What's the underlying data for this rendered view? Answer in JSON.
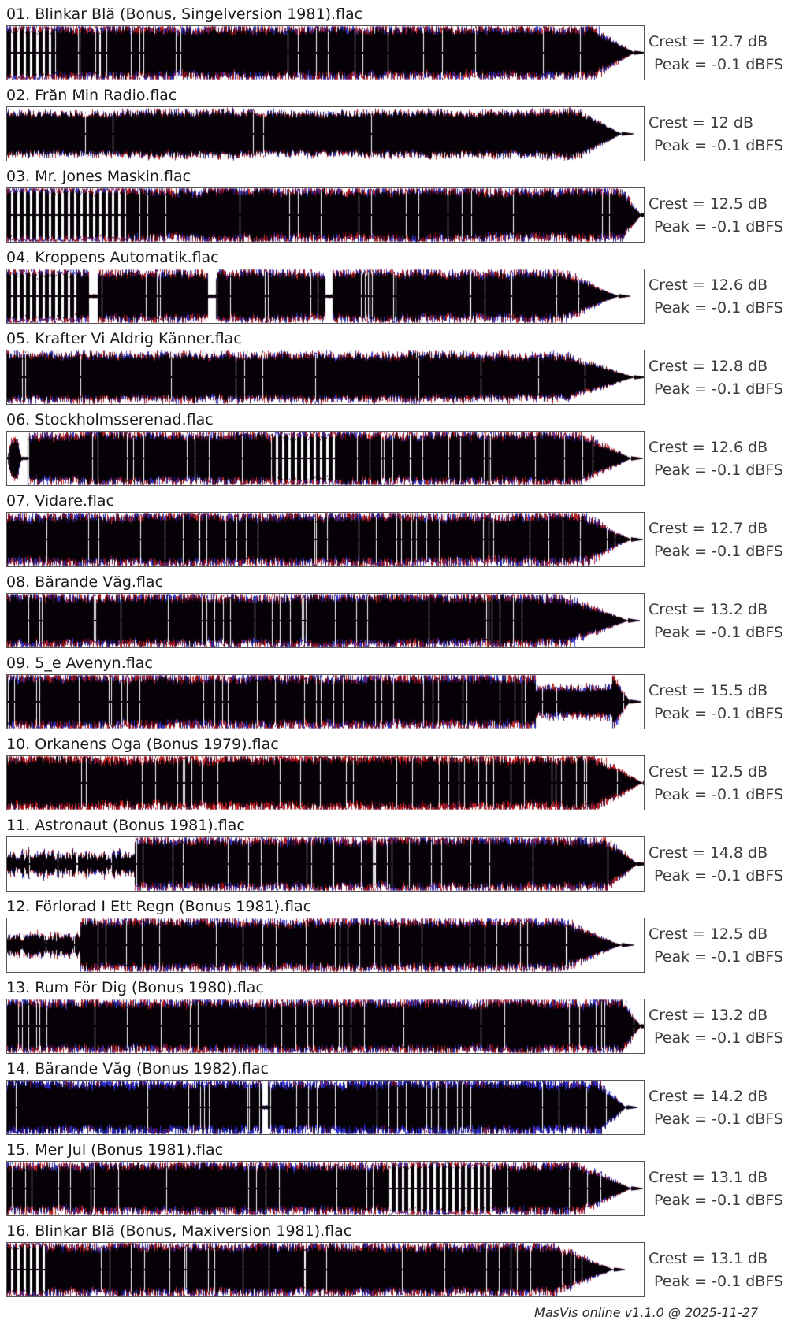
{
  "app": {
    "footer_text": "MasVis online v1.1.0 @ 2025-11-27"
  },
  "colors": {
    "background": "#ffffff",
    "title_text": "#1a1a1a",
    "stats_text": "#3d3d3d",
    "box_border": "#565656",
    "wave_body": "#050107",
    "wave_red": "#b00000",
    "wave_blue": "#2222b0"
  },
  "tracks": [
    {
      "title": "01. Blinkar Blă (Bonus, Singelversion 1981).flac",
      "crest_text": "Crest = 12.7 dB",
      "peak_text": "Peak = -0.1 dBFS",
      "crest_db": 12.7,
      "peak_dbfs": -0.1,
      "waveform": {
        "seed": 11,
        "bias": "neutral",
        "fur": 1.0,
        "body": 1.0,
        "segments": [
          {
            "from": 0,
            "to": 0.075,
            "type": "bars"
          }
        ],
        "tail": {
          "start": 0.92,
          "point": 0.985
        }
      }
    },
    {
      "title": "02. Frăn Min Radio.flac",
      "crest_text": "Crest = 12 dB",
      "peak_text": "Peak = -0.1 dBFS",
      "crest_db": 12,
      "peak_dbfs": -0.1,
      "waveform": {
        "seed": 22,
        "bias": "neutral",
        "fur": 0.25,
        "body": 0.93,
        "segments": [],
        "tail": {
          "start": 0.9,
          "point": 0.965
        }
      }
    },
    {
      "title": "03. Mr. Jones Maskin.flac",
      "crest_text": "Crest = 12.5 dB",
      "peak_text": "Peak = -0.1 dBFS",
      "crest_db": 12.5,
      "peak_dbfs": -0.1,
      "waveform": {
        "seed": 33,
        "bias": "neutral",
        "fur": 1.0,
        "body": 1.0,
        "segments": [
          {
            "from": 0,
            "to": 0.185,
            "type": "bars"
          }
        ],
        "tail": {
          "start": 0.965,
          "point": 0.995
        }
      }
    },
    {
      "title": "04. Kroppens Automatik.flac",
      "crest_text": "Crest = 12.6 dB",
      "peak_text": "Peak = -0.1 dBFS",
      "crest_db": 12.6,
      "peak_dbfs": -0.1,
      "waveform": {
        "seed": 44,
        "bias": "neutral",
        "fur": 0.8,
        "body": 0.97,
        "segments": [
          {
            "from": 0,
            "to": 0.115,
            "type": "bars"
          },
          {
            "from": 0.128,
            "to": 0.142,
            "type": "gap"
          },
          {
            "from": 0.315,
            "to": 0.327,
            "type": "gap"
          },
          {
            "from": 0.5,
            "to": 0.51,
            "type": "gap"
          }
        ],
        "tail": {
          "start": 0.87,
          "point": 0.96
        }
      }
    },
    {
      "title": "05. Krafter Vi Aldrig Känner.flac",
      "crest_text": "Crest = 12.8 dB",
      "peak_text": "Peak = -0.1 dBFS",
      "crest_db": 12.8,
      "peak_dbfs": -0.1,
      "waveform": {
        "seed": 55,
        "bias": "neutral",
        "fur": 0.5,
        "body": 0.96,
        "segments": [],
        "tail": {
          "start": 0.87,
          "point": 0.985
        }
      }
    },
    {
      "title": "06. Stockholmsserenad.flac",
      "crest_text": "Crest = 12.6 dB",
      "peak_text": "Peak = -0.1 dBFS",
      "crest_db": 12.6,
      "peak_dbfs": -0.1,
      "waveform": {
        "seed": 66,
        "bias": "neutral",
        "fur": 0.9,
        "body": 1.0,
        "segments": [
          {
            "from": 0,
            "to": 0.022,
            "type": "blob",
            "amp": 0.9
          },
          {
            "from": 0.022,
            "to": 0.032,
            "type": "gap"
          },
          {
            "from": 0.42,
            "to": 0.52,
            "type": "bars"
          }
        ],
        "tail": {
          "start": 0.9,
          "point": 0.98
        }
      }
    },
    {
      "title": "07. Vidare.flac",
      "crest_text": "Crest = 12.7 dB",
      "peak_text": "Peak = -0.1 dBFS",
      "crest_db": 12.7,
      "peak_dbfs": -0.1,
      "waveform": {
        "seed": 77,
        "bias": "neutral",
        "fur": 1.2,
        "body": 0.97,
        "segments": [],
        "tail": {
          "start": 0.9,
          "point": 0.98
        }
      }
    },
    {
      "title": "08. Bärande Văg.flac",
      "crest_text": "Crest = 13.2 dB",
      "peak_text": "Peak = -0.1 dBFS",
      "crest_db": 13.2,
      "peak_dbfs": -0.1,
      "waveform": {
        "seed": 88,
        "bias": "neutral",
        "fur": 1.0,
        "body": 1.0,
        "segments": [],
        "tail": {
          "start": 0.87,
          "point": 0.975
        }
      }
    },
    {
      "title": "09. 5_e Avenyn.flac",
      "crest_text": "Crest = 15.5 dB",
      "peak_text": "Peak = -0.1 dBFS",
      "crest_db": 15.5,
      "peak_dbfs": -0.1,
      "waveform": {
        "seed": 99,
        "bias": "neutral",
        "fur": 1.3,
        "body": 1.0,
        "segments": [
          {
            "from": 0.83,
            "to": 0.95,
            "type": "quiet",
            "amp": 0.55
          }
        ],
        "tail": {
          "start": 0.95,
          "point": 0.978
        }
      }
    },
    {
      "title": "10. Orkanens Oga (Bonus 1979).flac",
      "crest_text": "Crest = 12.5 dB",
      "peak_text": "Peak = -0.1 dBFS",
      "crest_db": 12.5,
      "peak_dbfs": -0.1,
      "waveform": {
        "seed": 110,
        "bias": "red",
        "fur": 1.2,
        "body": 1.0,
        "segments": [],
        "tail": {
          "start": 0.92,
          "point": 0.998
        }
      }
    },
    {
      "title": "11. Astronaut (Bonus 1981).flac",
      "crest_text": "Crest = 14.8 dB",
      "peak_text": "Peak = -0.1 dBFS",
      "crest_db": 14.8,
      "peak_dbfs": -0.1,
      "waveform": {
        "seed": 121,
        "bias": "neutral",
        "fur": 1.1,
        "body": 1.0,
        "segments": [
          {
            "from": 0,
            "to": 0.2,
            "type": "wavy",
            "amp": 0.55
          }
        ],
        "tail": {
          "start": 0.94,
          "point": 0.99
        }
      }
    },
    {
      "title": "12. Förlorad I Ett Regn (Bonus 1981).flac",
      "crest_text": "Crest = 12.5 dB",
      "peak_text": "Peak = -0.1 dBFS",
      "crest_db": 12.5,
      "peak_dbfs": -0.1,
      "waveform": {
        "seed": 132,
        "bias": "neutral",
        "fur": 0.9,
        "body": 0.96,
        "segments": [
          {
            "from": 0,
            "to": 0.115,
            "type": "wavy",
            "amp": 0.6
          }
        ],
        "tail": {
          "start": 0.87,
          "point": 0.965
        }
      }
    },
    {
      "title": "13. Rum För Dig (Bonus 1980).flac",
      "crest_text": "Crest = 13.2 dB",
      "peak_text": "Peak = -0.1 dBFS",
      "crest_db": 13.2,
      "peak_dbfs": -0.1,
      "waveform": {
        "seed": 143,
        "bias": "neutral",
        "fur": 1.1,
        "body": 1.0,
        "segments": [],
        "tail": {
          "start": 0.965,
          "point": 0.995
        }
      }
    },
    {
      "title": "14. Bärande Văg (Bonus 1982).flac",
      "crest_text": "Crest = 14.2 dB",
      "peak_text": "Peak = -0.1 dBFS",
      "crest_db": 14.2,
      "peak_dbfs": -0.1,
      "waveform": {
        "seed": 154,
        "bias": "blue",
        "fur": 1.2,
        "body": 1.0,
        "segments": [
          {
            "from": 0.4,
            "to": 0.409,
            "type": "gap"
          }
        ],
        "tail": {
          "start": 0.925,
          "point": 0.972
        }
      }
    },
    {
      "title": "15. Mer Jul (Bonus 1981).flac",
      "crest_text": "Crest = 13.1 dB",
      "peak_text": "Peak = -0.1 dBFS",
      "crest_db": 13.1,
      "peak_dbfs": -0.1,
      "waveform": {
        "seed": 165,
        "bias": "neutral",
        "fur": 1.0,
        "body": 0.97,
        "segments": [
          {
            "from": 0.6,
            "to": 0.76,
            "type": "bars"
          }
        ],
        "tail": {
          "start": 0.9,
          "point": 0.98
        }
      }
    },
    {
      "title": "16. Blinkar Blă (Bonus, Maxiversion 1981).flac",
      "crest_text": "Crest = 13.1 dB",
      "peak_text": "Peak = -0.1 dBFS",
      "crest_db": 13.1,
      "peak_dbfs": -0.1,
      "waveform": {
        "seed": 176,
        "bias": "neutral",
        "fur": 1.0,
        "body": 1.0,
        "segments": [
          {
            "from": 0,
            "to": 0.06,
            "type": "bars"
          }
        ],
        "tail": {
          "start": 0.85,
          "point": 0.952
        }
      }
    }
  ]
}
